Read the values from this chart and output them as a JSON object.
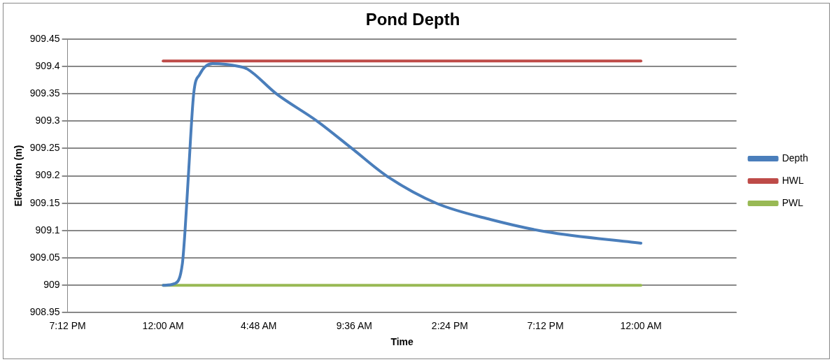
{
  "chart_data": {
    "type": "line",
    "title": "Pond Depth",
    "xlabel": "Time",
    "ylabel": "Elevation (m)",
    "xlim": [
      "2000-01-01T19:12",
      "2000-01-03T04:48"
    ],
    "xticks": [
      {
        "value": "2000-01-01T19:12",
        "label": "7:12 PM"
      },
      {
        "value": "2000-01-02T00:00",
        "label": "12:00 AM"
      },
      {
        "value": "2000-01-02T04:48",
        "label": "4:48 AM"
      },
      {
        "value": "2000-01-02T09:36",
        "label": "9:36 AM"
      },
      {
        "value": "2000-01-02T14:24",
        "label": "2:24 PM"
      },
      {
        "value": "2000-01-02T19:12",
        "label": "7:12 PM"
      },
      {
        "value": "2000-01-03T00:00",
        "label": "12:00 AM"
      }
    ],
    "ylim": [
      908.95,
      909.45
    ],
    "yticks": [
      908.95,
      909,
      909.05,
      909.1,
      909.15,
      909.2,
      909.25,
      909.3,
      909.35,
      909.4,
      909.45
    ],
    "grid": "y",
    "legend": "right",
    "marker": "none",
    "line_style": "solid",
    "series": [
      {
        "name": "Depth",
        "color": "#4a7ebb",
        "x": [
          "2000-01-02T00:00",
          "2000-01-02T00:34",
          "2000-01-02T00:58",
          "2000-01-02T01:06",
          "2000-01-02T01:16",
          "2000-01-02T01:32",
          "2000-01-02T01:50",
          "2000-01-02T02:29",
          "2000-01-02T03:48",
          "2000-01-02T04:14",
          "2000-01-02T05:41",
          "2000-01-02T07:44",
          "2000-01-02T09:29",
          "2000-01-02T11:13",
          "2000-01-02T13:43",
          "2000-01-02T16:28",
          "2000-01-02T19:13",
          "2000-01-03T00:00"
        ],
        "values": [
          909.0,
          909.003,
          909.04,
          909.1,
          909.2,
          909.35,
          909.385,
          909.405,
          909.4,
          909.395,
          909.35,
          909.3,
          909.25,
          909.2,
          909.15,
          909.12,
          909.098,
          909.077
        ]
      },
      {
        "name": "HWL",
        "color": "#be4b48",
        "x": [
          "2000-01-02T00:00",
          "2000-01-03T00:00"
        ],
        "values": [
          909.41,
          909.41
        ]
      },
      {
        "name": "PWL",
        "color": "#98b954",
        "x": [
          "2000-01-02T00:00",
          "2000-01-03T00:00"
        ],
        "values": [
          909.0,
          909.0
        ]
      }
    ]
  }
}
